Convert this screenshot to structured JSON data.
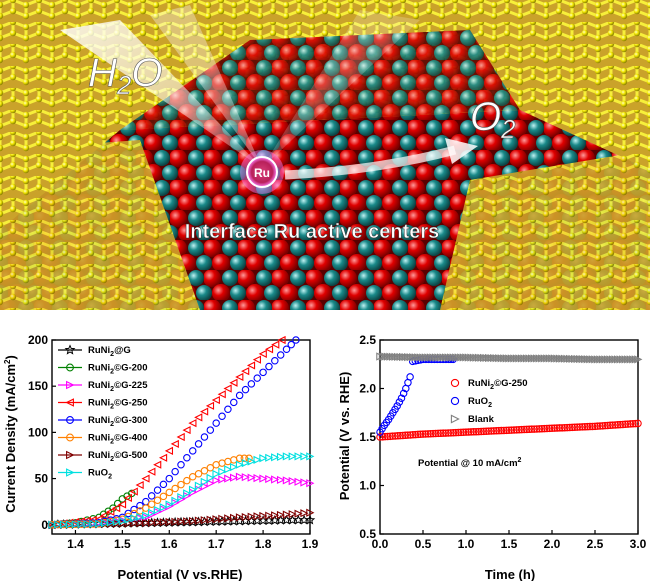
{
  "illustration": {
    "reactant_label": "H",
    "reactant_subscript": "2",
    "reactant_suffix": "O",
    "product_label": "O",
    "product_subscript": "2",
    "active_site_label": "Ru",
    "caption": "Interface Ru active centers",
    "colors": {
      "carbon": "#f2e600",
      "oxygen": "#d90000",
      "metal": "#1a8a8a",
      "site": "#e64fcf"
    }
  },
  "chart_data": [
    {
      "type": "line",
      "title": "",
      "xlabel": "Potential (V vs.RHE)",
      "ylabel_main": "Current Density (mA/cm",
      "ylabel_sup": "2",
      "ylabel_end": ")",
      "xlim": [
        1.35,
        1.9
      ],
      "ylim": [
        -10,
        200
      ],
      "xticks": [
        "1.4",
        "1.5",
        "1.6",
        "1.7",
        "1.8",
        "1.9"
      ],
      "xtick_values": [
        1.4,
        1.5,
        1.6,
        1.7,
        1.8,
        1.9
      ],
      "yticks": [
        "0",
        "50",
        "100",
        "150",
        "200"
      ],
      "ytick_values": [
        0,
        50,
        100,
        150,
        200
      ],
      "legend_position": "top-left",
      "series": [
        {
          "name_pre": "RuNi",
          "name_sub": "2",
          "name_post": "@G",
          "color": "#000000",
          "marker": "star",
          "x": [
            1.35,
            1.45,
            1.55,
            1.65,
            1.75,
            1.85,
            1.9
          ],
          "y": [
            0,
            1,
            2,
            3,
            4,
            5,
            5
          ]
        },
        {
          "name_pre": "RuNi",
          "name_sub": "2",
          "name_post": "©G-200",
          "color": "#008000",
          "marker": "circle",
          "x": [
            1.35,
            1.4,
            1.45,
            1.48,
            1.5,
            1.52
          ],
          "y": [
            0,
            2,
            8,
            18,
            28,
            34
          ]
        },
        {
          "name_pre": "RuNi",
          "name_sub": "2",
          "name_post": "©G-225",
          "color": "#ff00ff",
          "marker": "triangle-right",
          "x": [
            1.35,
            1.45,
            1.55,
            1.6,
            1.65,
            1.7,
            1.75,
            1.8,
            1.85,
            1.9
          ],
          "y": [
            0,
            2,
            8,
            20,
            35,
            48,
            52,
            50,
            48,
            45
          ]
        },
        {
          "name_pre": "RuNi",
          "name_sub": "2",
          "name_post": "©G-250",
          "color": "#ff0000",
          "marker": "triangle-left",
          "x": [
            1.35,
            1.45,
            1.5,
            1.55,
            1.6,
            1.65,
            1.7,
            1.75,
            1.8,
            1.84
          ],
          "y": [
            0,
            6,
            22,
            50,
            80,
            110,
            135,
            160,
            185,
            200
          ]
        },
        {
          "name_pre": "RuNi",
          "name_sub": "2",
          "name_post": "©G-300",
          "color": "#0000ff",
          "marker": "circle",
          "x": [
            1.35,
            1.45,
            1.5,
            1.55,
            1.6,
            1.65,
            1.7,
            1.75,
            1.8,
            1.85,
            1.87
          ],
          "y": [
            0,
            2,
            8,
            25,
            50,
            80,
            110,
            140,
            165,
            190,
            200
          ]
        },
        {
          "name_pre": "RuNi",
          "name_sub": "2",
          "name_post": "©G-400",
          "color": "#ff8000",
          "marker": "circle",
          "x": [
            1.35,
            1.45,
            1.5,
            1.55,
            1.6,
            1.65,
            1.7,
            1.75,
            1.77
          ],
          "y": [
            0,
            1,
            6,
            18,
            35,
            52,
            65,
            72,
            72
          ]
        },
        {
          "name_pre": "RuNi",
          "name_sub": "2",
          "name_post": "©G-500",
          "color": "#800000",
          "marker": "triangle-right",
          "x": [
            1.35,
            1.45,
            1.55,
            1.65,
            1.75,
            1.85,
            1.9
          ],
          "y": [
            0,
            1,
            2,
            4,
            8,
            11,
            13
          ]
        },
        {
          "name_pre": "RuO",
          "name_sub": "2",
          "name_post": "",
          "color": "#00e0e0",
          "marker": "triangle-right",
          "x": [
            1.35,
            1.45,
            1.5,
            1.55,
            1.6,
            1.65,
            1.7,
            1.75,
            1.8,
            1.85,
            1.9
          ],
          "y": [
            0,
            1,
            4,
            10,
            22,
            38,
            55,
            65,
            72,
            74,
            74
          ]
        }
      ]
    },
    {
      "type": "line",
      "title": "",
      "xlabel": "Time (h)",
      "ylabel": "Potential (V vs. RHE)",
      "xlim": [
        0,
        3.0
      ],
      "ylim": [
        0.5,
        2.5
      ],
      "xticks": [
        "0.0",
        "0.5",
        "1.0",
        "1.5",
        "2.0",
        "2.5",
        "3.0"
      ],
      "xtick_values": [
        0,
        0.5,
        1.0,
        1.5,
        2.0,
        2.5,
        3.0
      ],
      "yticks": [
        "0.5",
        "1.0",
        "1.5",
        "2.0",
        "2.5"
      ],
      "ytick_values": [
        0.5,
        1.0,
        1.5,
        2.0,
        2.5
      ],
      "legend_position": "right",
      "annotation_pre": "Potential @ 10 mA/cm",
      "annotation_sup": "2",
      "series": [
        {
          "name_pre": "RuNi",
          "name_sub": "2",
          "name_post": "©G-250",
          "color": "#ff0000",
          "marker": "circle",
          "x": [
            0,
            0.5,
            1.0,
            1.5,
            2.0,
            2.5,
            3.0
          ],
          "y": [
            1.5,
            1.53,
            1.55,
            1.57,
            1.59,
            1.61,
            1.64
          ]
        },
        {
          "name_pre": "RuO",
          "name_sub": "2",
          "name_post": "",
          "color": "#0000ff",
          "marker": "circle",
          "x": [
            0,
            0.05,
            0.1,
            0.15,
            0.2,
            0.25,
            0.3,
            0.35,
            0.38,
            0.5,
            0.6,
            0.7,
            0.8,
            0.85
          ],
          "y": [
            1.55,
            1.62,
            1.68,
            1.75,
            1.82,
            1.9,
            2.0,
            2.12,
            2.28,
            2.3,
            2.3,
            2.3,
            2.3,
            2.3
          ]
        },
        {
          "name_pre": "Blank",
          "name_sub": "",
          "name_post": "",
          "color": "#808080",
          "marker": "triangle-right",
          "x": [
            0,
            0.5,
            1.0,
            1.5,
            2.0,
            2.5,
            3.0
          ],
          "y": [
            2.33,
            2.32,
            2.32,
            2.31,
            2.31,
            2.3,
            2.3
          ]
        }
      ]
    }
  ]
}
